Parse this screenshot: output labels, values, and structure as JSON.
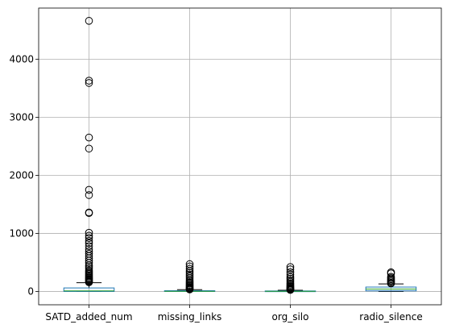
{
  "chart_data": {
    "type": "box",
    "title": "",
    "xlabel": "",
    "ylabel": "",
    "ylim": [
      -230,
      4880
    ],
    "yticks": [
      0,
      1000,
      2000,
      3000,
      4000
    ],
    "grid": true,
    "colors": {
      "box": "#1f77b4",
      "median": "#2ca02c",
      "whisker": "#000000",
      "outlier": "#000000",
      "grid": "#b0b0b0"
    },
    "categories": [
      "SATD_added_num",
      "missing_links",
      "org_silo",
      "radio_silence"
    ],
    "boxes": [
      {
        "name": "SATD_added_num",
        "q1": 0,
        "median": 10,
        "q3": 60,
        "whisker_low": 0,
        "whisker_high": 150,
        "outliers": [
          4660,
          3630,
          3590,
          2650,
          2460,
          1750,
          1660,
          1360,
          1350,
          1010,
          960,
          920,
          870,
          830,
          780,
          730,
          690,
          650,
          610,
          570,
          530,
          490,
          450,
          420,
          390,
          360,
          340,
          320,
          300,
          280,
          260,
          240,
          225,
          210,
          195,
          180,
          168,
          158
        ]
      },
      {
        "name": "missing_links",
        "q1": 0,
        "median": 3,
        "q3": 12,
        "whisker_low": 0,
        "whisker_high": 30,
        "outliers": [
          470,
          430,
          390,
          350,
          320,
          290,
          260,
          230,
          200,
          175,
          155,
          135,
          115,
          100,
          85,
          70,
          58,
          48,
          40,
          34
        ]
      },
      {
        "name": "org_silo",
        "q1": 0,
        "median": 2,
        "q3": 8,
        "whisker_low": 0,
        "whisker_high": 20,
        "outliers": [
          420,
          380,
          330,
          290,
          250,
          220,
          190,
          165,
          140,
          120,
          100,
          85,
          70,
          58,
          48,
          38,
          30,
          25
        ]
      },
      {
        "name": "radio_silence",
        "q1": 10,
        "median": 40,
        "q3": 75,
        "whisker_low": 0,
        "whisker_high": 130,
        "outliers": [
          330,
          310,
          250,
          230,
          210,
          190,
          170,
          150,
          138
        ]
      }
    ]
  }
}
